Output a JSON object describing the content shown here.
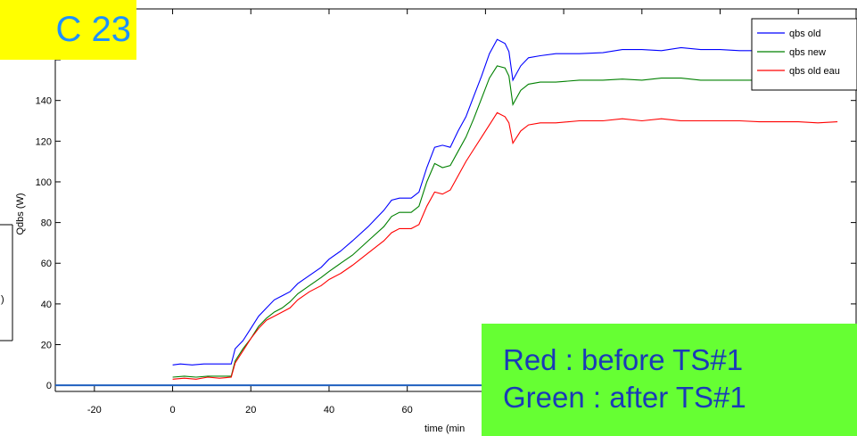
{
  "badge": {
    "text": "C 23",
    "bg": "#ffff00",
    "fg": "#1e90ff"
  },
  "note": {
    "line1": "Red : before TS#1",
    "line2": "Green : after TS#1",
    "bg": "#66ff33",
    "fg": "#1a3ab8"
  },
  "left_fragment": {
    "text": ")"
  },
  "chart_data": {
    "type": "line",
    "title": "",
    "xlabel": "time (min",
    "ylabel": "Qdbs (W)",
    "xlim": [
      -30,
      175
    ],
    "ylim": [
      -3,
      185
    ],
    "xticks": [
      -20,
      0,
      20,
      40,
      60
    ],
    "yticks": [
      0,
      20,
      40,
      60,
      80,
      100,
      120,
      140
    ],
    "legend_position": "top-right",
    "series": [
      {
        "name": "qbs old",
        "color": "#0000ff",
        "points": [
          [
            0,
            10
          ],
          [
            2,
            10.5
          ],
          [
            5,
            10
          ],
          [
            8,
            10.5
          ],
          [
            12,
            10.5
          ],
          [
            15,
            10.5
          ],
          [
            16,
            18
          ],
          [
            18,
            22
          ],
          [
            20,
            28
          ],
          [
            22,
            34
          ],
          [
            24,
            38
          ],
          [
            26,
            42
          ],
          [
            28,
            44
          ],
          [
            30,
            46
          ],
          [
            32,
            50
          ],
          [
            35,
            54
          ],
          [
            38,
            58
          ],
          [
            40,
            62
          ],
          [
            43,
            66
          ],
          [
            46,
            71
          ],
          [
            50,
            78
          ],
          [
            54,
            86
          ],
          [
            56,
            91
          ],
          [
            58,
            92
          ],
          [
            61,
            92
          ],
          [
            63,
            95
          ],
          [
            65,
            107
          ],
          [
            67,
            117
          ],
          [
            69,
            118
          ],
          [
            71,
            117
          ],
          [
            73,
            125
          ],
          [
            75,
            132
          ],
          [
            77,
            142
          ],
          [
            79,
            152
          ],
          [
            81,
            163
          ],
          [
            83,
            170
          ],
          [
            85,
            168
          ],
          [
            86,
            164
          ],
          [
            87,
            150
          ],
          [
            89,
            157
          ],
          [
            91,
            161
          ],
          [
            94,
            162
          ],
          [
            98,
            163
          ],
          [
            104,
            163
          ],
          [
            110,
            163.5
          ],
          [
            115,
            165
          ],
          [
            120,
            165
          ],
          [
            125,
            164.5
          ],
          [
            130,
            166
          ],
          [
            135,
            165
          ],
          [
            140,
            165
          ],
          [
            145,
            164.5
          ],
          [
            150,
            164.5
          ],
          [
            155,
            164.5
          ],
          [
            160,
            165
          ],
          [
            165,
            164
          ],
          [
            170,
            164
          ]
        ]
      },
      {
        "name": "qbs new",
        "color": "#008000",
        "points": [
          [
            0,
            4
          ],
          [
            3,
            4.5
          ],
          [
            6,
            4
          ],
          [
            9,
            4.5
          ],
          [
            12,
            4.5
          ],
          [
            15,
            4.5
          ],
          [
            16,
            12
          ],
          [
            18,
            18
          ],
          [
            20,
            23
          ],
          [
            22,
            29
          ],
          [
            24,
            33
          ],
          [
            26,
            36
          ],
          [
            28,
            38
          ],
          [
            30,
            41
          ],
          [
            32,
            45
          ],
          [
            35,
            49
          ],
          [
            38,
            53
          ],
          [
            40,
            56
          ],
          [
            43,
            60
          ],
          [
            46,
            64
          ],
          [
            50,
            71
          ],
          [
            54,
            78
          ],
          [
            56,
            83
          ],
          [
            58,
            85
          ],
          [
            61,
            85
          ],
          [
            63,
            88
          ],
          [
            65,
            100
          ],
          [
            67,
            109
          ],
          [
            69,
            107
          ],
          [
            71,
            108
          ],
          [
            73,
            115
          ],
          [
            75,
            122
          ],
          [
            77,
            131
          ],
          [
            79,
            141
          ],
          [
            81,
            151
          ],
          [
            83,
            157
          ],
          [
            85,
            156
          ],
          [
            86,
            152
          ],
          [
            87,
            138
          ],
          [
            89,
            145
          ],
          [
            91,
            148
          ],
          [
            94,
            149
          ],
          [
            98,
            149
          ],
          [
            104,
            150
          ],
          [
            110,
            150
          ],
          [
            115,
            150.5
          ],
          [
            120,
            150
          ],
          [
            125,
            151
          ],
          [
            130,
            151
          ],
          [
            135,
            150
          ],
          [
            140,
            150
          ],
          [
            145,
            150
          ],
          [
            150,
            150
          ],
          [
            155,
            150
          ],
          [
            160,
            150
          ],
          [
            165,
            149
          ],
          [
            170,
            150
          ]
        ]
      },
      {
        "name": "qbs old eau",
        "color": "#ff0000",
        "points": [
          [
            0,
            3
          ],
          [
            3,
            3.5
          ],
          [
            6,
            3
          ],
          [
            9,
            4
          ],
          [
            12,
            3.5
          ],
          [
            15,
            4
          ],
          [
            16,
            11
          ],
          [
            18,
            17
          ],
          [
            20,
            23
          ],
          [
            22,
            28
          ],
          [
            24,
            32
          ],
          [
            26,
            34
          ],
          [
            28,
            36
          ],
          [
            30,
            38
          ],
          [
            32,
            42
          ],
          [
            35,
            46
          ],
          [
            38,
            49
          ],
          [
            40,
            52
          ],
          [
            43,
            55
          ],
          [
            46,
            59
          ],
          [
            50,
            65
          ],
          [
            54,
            71
          ],
          [
            56,
            75
          ],
          [
            58,
            77
          ],
          [
            61,
            77
          ],
          [
            63,
            79
          ],
          [
            65,
            88
          ],
          [
            67,
            95
          ],
          [
            69,
            94
          ],
          [
            71,
            96
          ],
          [
            73,
            103
          ],
          [
            75,
            110
          ],
          [
            77,
            116
          ],
          [
            79,
            122
          ],
          [
            81,
            128
          ],
          [
            83,
            134
          ],
          [
            85,
            132
          ],
          [
            86,
            129
          ],
          [
            87,
            119
          ],
          [
            89,
            125
          ],
          [
            91,
            128
          ],
          [
            94,
            129
          ],
          [
            98,
            129
          ],
          [
            104,
            130
          ],
          [
            110,
            130
          ],
          [
            115,
            131
          ],
          [
            120,
            130
          ],
          [
            125,
            131
          ],
          [
            130,
            130
          ],
          [
            135,
            130
          ],
          [
            140,
            130
          ],
          [
            145,
            130
          ],
          [
            150,
            129.5
          ],
          [
            155,
            129.5
          ],
          [
            160,
            129.5
          ],
          [
            165,
            129
          ],
          [
            170,
            129.5
          ]
        ]
      }
    ]
  },
  "colors": {
    "zero_line": "#1f5fbf",
    "axis": "#000000"
  }
}
